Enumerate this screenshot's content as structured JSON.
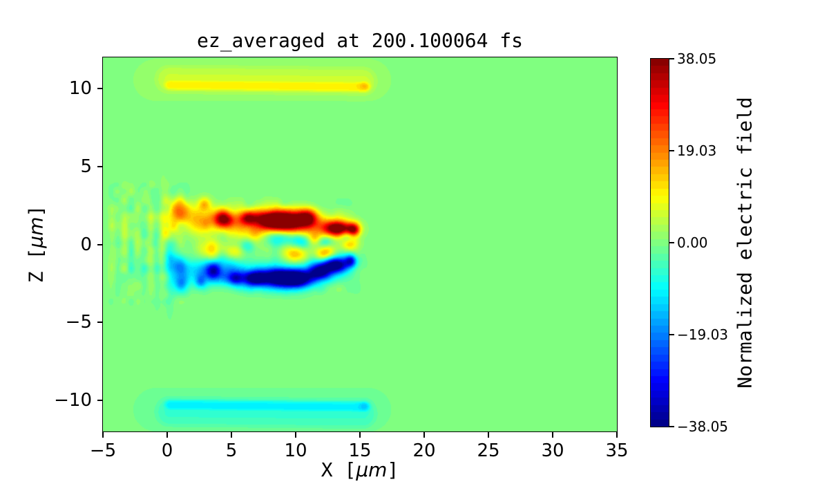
{
  "chart_data": {
    "type": "heatmap",
    "title": "ez_averaged at 200.100064 fs",
    "xlabel": "X [μm]",
    "ylabel": "Z [μm]",
    "colorbar_label": "Normalized electric field",
    "axis_label_parts": {
      "x_prefix": "X [",
      "z_prefix": "Z [",
      "mu_m": "μm",
      "suffix": "]"
    },
    "colormap": "jet",
    "levels": 51,
    "vmin": -38.05,
    "vmax": 38.05,
    "xlim": [
      -5,
      35
    ],
    "zlim": [
      -12,
      12
    ],
    "x_tick_values": [
      -5,
      0,
      5,
      10,
      15,
      20,
      25,
      30,
      35
    ],
    "x_tick_labels": [
      "−5",
      "0",
      "5",
      "10",
      "15",
      "20",
      "25",
      "30",
      "35"
    ],
    "z_tick_values": [
      10,
      5,
      0,
      -5,
      -10
    ],
    "z_tick_labels": [
      "10",
      "5",
      "0",
      "−5",
      "−10"
    ],
    "colorbar_tick_values": [
      38.05,
      19.03,
      0.0,
      -19.03,
      -38.05
    ],
    "colorbar_tick_labels": [
      "38.05",
      "19.03",
      "0.00",
      "−19.03",
      "−38.05"
    ],
    "background_value": 0.0,
    "accent_colors": {
      "background_green": "#80ff80",
      "max_red": "#800000",
      "min_blue": "#000080"
    },
    "field_features": {
      "gaussians": [
        [
          1.6,
          1.9,
          0.9,
          0.5,
          9
        ],
        [
          2.6,
          1.2,
          0.9,
          0.5,
          9
        ],
        [
          3.6,
          1.8,
          0.9,
          0.5,
          9
        ],
        [
          4.7,
          1.5,
          0.9,
          0.55,
          10
        ],
        [
          5.9,
          1.3,
          0.9,
          0.55,
          9
        ],
        [
          7.1,
          1.6,
          0.9,
          0.55,
          10
        ],
        [
          8.4,
          1.4,
          0.9,
          0.55,
          9
        ],
        [
          9.7,
          1.5,
          0.9,
          0.55,
          10
        ],
        [
          11.0,
          1.3,
          0.9,
          0.55,
          9
        ],
        [
          12.2,
          1.1,
          0.9,
          0.5,
          9
        ],
        [
          13.5,
          1.0,
          0.9,
          0.5,
          9
        ],
        [
          0.9,
          2.3,
          0.5,
          0.45,
          16
        ],
        [
          0.3,
          1.0,
          0.5,
          0.6,
          9
        ],
        [
          2.9,
          2.6,
          0.35,
          0.3,
          13
        ],
        [
          4.4,
          1.6,
          0.5,
          0.35,
          24
        ],
        [
          6.3,
          1.7,
          0.42,
          0.3,
          21
        ],
        [
          7.9,
          1.55,
          0.8,
          0.4,
          31
        ],
        [
          9.4,
          1.5,
          0.9,
          0.45,
          35
        ],
        [
          10.9,
          1.7,
          0.55,
          0.4,
          29
        ],
        [
          13.3,
          1.0,
          0.75,
          0.33,
          33
        ],
        [
          14.5,
          0.95,
          0.35,
          0.28,
          27
        ],
        [
          9.9,
          -0.6,
          0.7,
          0.4,
          15
        ],
        [
          12.35,
          -0.55,
          0.55,
          0.35,
          18
        ],
        [
          3.3,
          -0.3,
          0.6,
          0.45,
          12
        ],
        [
          5.2,
          -0.4,
          0.5,
          0.35,
          11
        ],
        [
          6.9,
          0.6,
          0.5,
          0.35,
          10
        ],
        [
          11.5,
          0.35,
          0.4,
          0.28,
          10
        ],
        [
          14.2,
          0.0,
          0.45,
          0.3,
          13
        ],
        [
          8.7,
          0.45,
          0.9,
          0.35,
          -12
        ],
        [
          10.45,
          0.25,
          0.55,
          0.33,
          -11
        ],
        [
          12.3,
          0.2,
          0.45,
          0.28,
          -10
        ],
        [
          6.0,
          -0.1,
          0.5,
          0.3,
          -8
        ],
        [
          13.9,
          0.55,
          0.4,
          0.3,
          -9
        ],
        [
          2.2,
          -1.6,
          0.9,
          0.5,
          -8
        ],
        [
          3.2,
          -2.0,
          0.9,
          0.5,
          -9
        ],
        [
          4.3,
          -1.5,
          0.9,
          0.5,
          -9
        ],
        [
          5.4,
          -1.9,
          0.9,
          0.55,
          -9
        ],
        [
          6.6,
          -2.1,
          0.9,
          0.55,
          -9
        ],
        [
          7.8,
          -1.9,
          0.9,
          0.55,
          -9
        ],
        [
          9.0,
          -2.1,
          0.9,
          0.55,
          -10
        ],
        [
          10.2,
          -2.2,
          0.9,
          0.55,
          -9
        ],
        [
          11.4,
          -1.8,
          0.9,
          0.55,
          -9
        ],
        [
          12.6,
          -1.4,
          0.9,
          0.5,
          -9
        ],
        [
          13.8,
          -1.2,
          0.8,
          0.45,
          -9
        ],
        [
          1.0,
          -1.5,
          0.45,
          0.4,
          -15
        ],
        [
          1.1,
          -2.5,
          0.45,
          0.4,
          -17
        ],
        [
          0.4,
          -0.8,
          0.5,
          0.5,
          -8
        ],
        [
          2.6,
          -2.4,
          0.3,
          0.3,
          -13
        ],
        [
          3.6,
          -1.7,
          0.4,
          0.4,
          -19
        ],
        [
          5.3,
          -2.2,
          0.5,
          0.3,
          -23
        ],
        [
          6.9,
          -2.2,
          0.6,
          0.33,
          -29
        ],
        [
          8.6,
          -2.15,
          0.85,
          0.4,
          -33
        ],
        [
          10.2,
          -2.2,
          0.75,
          0.4,
          -32
        ],
        [
          11.9,
          -1.8,
          0.55,
          0.35,
          -27
        ],
        [
          13.1,
          -1.35,
          0.65,
          0.33,
          -31
        ],
        [
          14.3,
          -1.05,
          0.32,
          0.26,
          -22
        ],
        [
          -4.3,
          0.9,
          0.18,
          1.3,
          2.5
        ],
        [
          -3.8,
          -0.9,
          0.18,
          1.3,
          -2.5
        ],
        [
          -3.3,
          1.0,
          0.18,
          1.4,
          3
        ],
        [
          -2.8,
          -1.1,
          0.18,
          1.4,
          -3
        ],
        [
          -2.3,
          1.0,
          0.2,
          1.5,
          3.2
        ],
        [
          -1.8,
          -1.2,
          0.2,
          1.5,
          -3.2
        ],
        [
          -1.3,
          1.1,
          0.2,
          1.6,
          3.8
        ],
        [
          -0.8,
          -1.3,
          0.2,
          1.6,
          -4
        ],
        [
          -0.3,
          1.2,
          0.25,
          1.7,
          4.5
        ],
        [
          0.2,
          -1.5,
          0.25,
          1.7,
          -5
        ],
        [
          15.35,
          10.15,
          0.3,
          0.22,
          4
        ],
        [
          15.35,
          -10.35,
          0.3,
          0.22,
          -3.5
        ]
      ],
      "capsules": [
        [
          -0.8,
          10.55,
          15.6,
          10.55,
          1.9,
          1.4,
          1.8
        ],
        [
          0.2,
          10.6,
          15.2,
          10.45,
          1.0,
          0.85,
          3.5
        ],
        [
          0.3,
          10.22,
          15.3,
          10.1,
          0.5,
          0.3,
          5.5
        ],
        [
          -0.8,
          -10.6,
          15.6,
          -10.6,
          1.9,
          1.45,
          -1.8
        ],
        [
          0.2,
          -10.75,
          15.2,
          -10.9,
          1.0,
          0.9,
          -3.5
        ],
        [
          0.3,
          -10.28,
          15.3,
          -10.4,
          0.5,
          0.32,
          -5.3
        ]
      ],
      "speckle": [
        {
          "x0": -5.0,
          "x1": 2.2,
          "z0": -4.3,
          "z1": 4.3,
          "cell": 0.55,
          "amp": 2.8,
          "seed": 3
        },
        {
          "x0": 2.2,
          "x1": 15.6,
          "z0": -3.6,
          "z1": 3.4,
          "cell": 0.7,
          "amp": 2.4,
          "seed": 9
        }
      ]
    }
  }
}
